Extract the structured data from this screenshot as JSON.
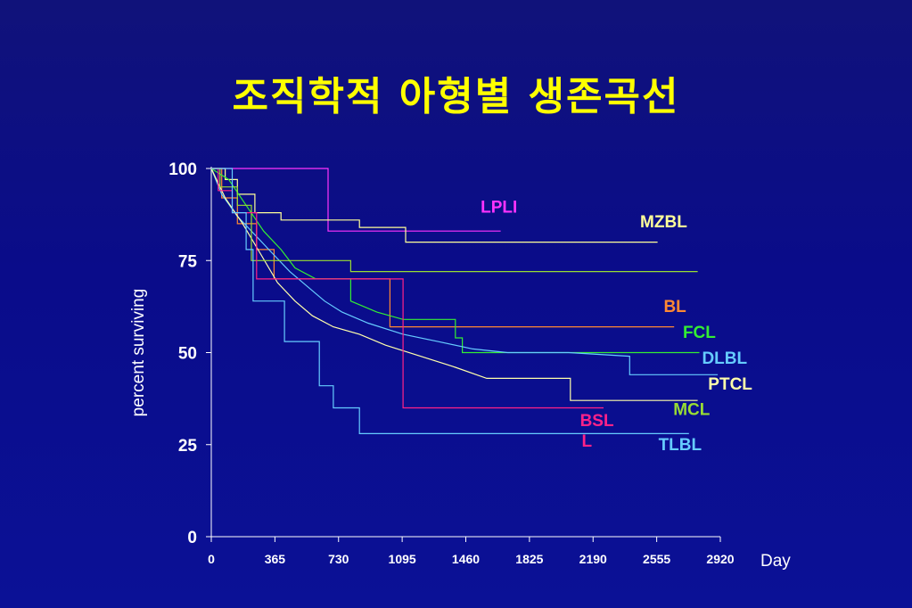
{
  "slide": {
    "title": "조직학적 아형별 생존곡선"
  },
  "colors": {
    "background": "#0a0c8a",
    "title": "#ffff00",
    "axis": "#ffffff"
  },
  "chart_data": {
    "type": "line",
    "title": "",
    "xlabel": "Day",
    "ylabel": "percent surviving",
    "xlim": [
      0,
      2920
    ],
    "ylim": [
      0,
      100
    ],
    "x_ticks": [
      0,
      365,
      730,
      1095,
      1460,
      1825,
      2190,
      2555,
      2920
    ],
    "y_ticks": [
      0,
      25,
      50,
      75,
      100
    ],
    "grid": false,
    "legend": "inline labels at right end of curves",
    "series": [
      {
        "name": "LPLI",
        "color": "#ff33ff",
        "label_at": [
          1545,
          88
        ],
        "points": [
          [
            0,
            100
          ],
          [
            670,
            100
          ],
          [
            670,
            83
          ],
          [
            1660,
            83
          ]
        ]
      },
      {
        "name": "MZBL",
        "color": "#ffff99",
        "label_at": [
          2460,
          84
        ],
        "points": [
          [
            0,
            100
          ],
          [
            80,
            100
          ],
          [
            80,
            97
          ],
          [
            150,
            97
          ],
          [
            150,
            93
          ],
          [
            250,
            93
          ],
          [
            250,
            88
          ],
          [
            400,
            88
          ],
          [
            400,
            86
          ],
          [
            850,
            86
          ],
          [
            850,
            84
          ],
          [
            1115,
            84
          ],
          [
            1115,
            80
          ],
          [
            2560,
            80
          ]
        ]
      },
      {
        "name": "BL",
        "color": "#ff8833",
        "label_at": [
          2595,
          61
        ],
        "points": [
          [
            0,
            100
          ],
          [
            60,
            100
          ],
          [
            60,
            92
          ],
          [
            150,
            92
          ],
          [
            150,
            85
          ],
          [
            260,
            85
          ],
          [
            260,
            78
          ],
          [
            360,
            78
          ],
          [
            360,
            70
          ],
          [
            1025,
            70
          ],
          [
            1025,
            57
          ],
          [
            2655,
            57
          ]
        ]
      },
      {
        "name": "FCL",
        "color": "#33ee33",
        "label_at": [
          2705,
          54
        ],
        "points": [
          [
            0,
            100
          ],
          [
            100,
            97
          ],
          [
            200,
            90
          ],
          [
            300,
            83
          ],
          [
            400,
            78
          ],
          [
            480,
            73
          ],
          [
            600,
            70
          ],
          [
            800,
            70
          ],
          [
            800,
            64
          ],
          [
            950,
            61
          ],
          [
            1100,
            59
          ],
          [
            1400,
            59
          ],
          [
            1400,
            54
          ],
          [
            1440,
            54
          ],
          [
            1440,
            50
          ],
          [
            2800,
            50
          ]
        ]
      },
      {
        "name": "DLBL",
        "color": "#66ccff",
        "label_at": [
          2815,
          47
        ],
        "points": [
          [
            0,
            100
          ],
          [
            60,
            93
          ],
          [
            150,
            87
          ],
          [
            250,
            82
          ],
          [
            350,
            77
          ],
          [
            450,
            72
          ],
          [
            550,
            68
          ],
          [
            650,
            64
          ],
          [
            750,
            61
          ],
          [
            900,
            58
          ],
          [
            1100,
            55
          ],
          [
            1300,
            53
          ],
          [
            1500,
            51
          ],
          [
            1700,
            50
          ],
          [
            2050,
            50
          ],
          [
            2400,
            49
          ],
          [
            2400,
            44
          ],
          [
            2905,
            44
          ]
        ]
      },
      {
        "name": "PTCL",
        "color": "#ffffaa",
        "label_at": [
          2850,
          40
        ],
        "points": [
          [
            0,
            100
          ],
          [
            80,
            92
          ],
          [
            180,
            85
          ],
          [
            280,
            77
          ],
          [
            380,
            69
          ],
          [
            480,
            64
          ],
          [
            580,
            60
          ],
          [
            700,
            57
          ],
          [
            850,
            55
          ],
          [
            1000,
            52
          ],
          [
            1200,
            49
          ],
          [
            1400,
            46
          ],
          [
            1580,
            43
          ],
          [
            2060,
            43
          ],
          [
            2060,
            37
          ],
          [
            2790,
            37
          ]
        ]
      },
      {
        "name": "MCL",
        "color": "#99dd33",
        "label_at": [
          2650,
          33
        ],
        "points": [
          [
            0,
            100
          ],
          [
            50,
            100
          ],
          [
            50,
            95
          ],
          [
            150,
            95
          ],
          [
            150,
            90
          ],
          [
            230,
            90
          ],
          [
            230,
            75
          ],
          [
            800,
            75
          ],
          [
            800,
            72
          ],
          [
            2790,
            72
          ]
        ]
      },
      {
        "name": "BSL",
        "color": "#ff2288",
        "label_at": [
          2115,
          30
        ],
        "points": [
          [
            0,
            100
          ],
          [
            40,
            100
          ],
          [
            40,
            94
          ],
          [
            120,
            94
          ],
          [
            120,
            88
          ],
          [
            260,
            88
          ],
          [
            260,
            70
          ],
          [
            1100,
            70
          ],
          [
            1100,
            35
          ],
          [
            2250,
            35
          ]
        ]
      },
      {
        "name": "L",
        "color": "#ff2288",
        "label_at": [
          2125,
          24.5
        ],
        "points": []
      },
      {
        "name": "TLBL",
        "color": "#66ccff",
        "label_at": [
          2565,
          23.5
        ],
        "points": [
          [
            0,
            100
          ],
          [
            120,
            100
          ],
          [
            120,
            88
          ],
          [
            200,
            88
          ],
          [
            200,
            78
          ],
          [
            240,
            78
          ],
          [
            240,
            64
          ],
          [
            420,
            64
          ],
          [
            420,
            53
          ],
          [
            620,
            53
          ],
          [
            620,
            41
          ],
          [
            700,
            41
          ],
          [
            700,
            35
          ],
          [
            850,
            35
          ],
          [
            850,
            28
          ],
          [
            2740,
            28
          ]
        ]
      }
    ]
  }
}
